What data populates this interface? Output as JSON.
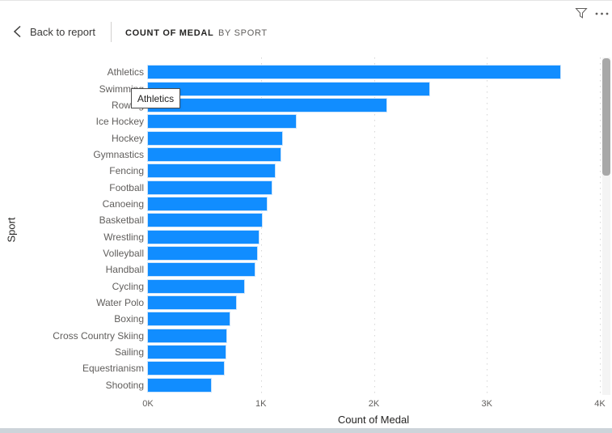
{
  "header": {
    "back_label": "Back to report",
    "tabs": [
      {
        "label": "COUNT OF MEDAL",
        "active": true
      },
      {
        "label": "BY SPORT",
        "active": false
      }
    ]
  },
  "toolbar": {
    "filter_icon": "filter-funnel-icon",
    "more_icon": "ellipsis-icon"
  },
  "tooltip": {
    "text": "Athletics"
  },
  "chart_data": {
    "type": "bar",
    "orientation": "horizontal",
    "title": "Count of Medal by Sport",
    "xlabel": "Count of Medal",
    "ylabel": "Sport",
    "xlim": [
      0,
      4000
    ],
    "grid": true,
    "legend": "none",
    "bar_color": "#118DFF",
    "xticks": [
      {
        "value": 0,
        "label": "0K"
      },
      {
        "value": 1000,
        "label": "1K"
      },
      {
        "value": 2000,
        "label": "2K"
      },
      {
        "value": 3000,
        "label": "3K"
      },
      {
        "value": 4000,
        "label": "4K"
      }
    ],
    "gridlines": [
      1000,
      2000,
      3000,
      4000
    ],
    "categories": [
      "Athletics",
      "Swimming",
      "Rowing",
      "Ice Hockey",
      "Hockey",
      "Gymnastics",
      "Fencing",
      "Football",
      "Canoeing",
      "Basketball",
      "Wrestling",
      "Volleyball",
      "Handball",
      "Cycling",
      "Water Polo",
      "Boxing",
      "Cross Country Skiing",
      "Sailing",
      "Equestrianism",
      "Shooting"
    ],
    "values": [
      3650,
      2490,
      2110,
      1310,
      1185,
      1170,
      1120,
      1095,
      1050,
      1010,
      980,
      965,
      945,
      855,
      780,
      720,
      695,
      690,
      675,
      555
    ]
  },
  "colors": {
    "bar": "#118DFF",
    "axis_text": "#605E5C",
    "title_text": "#252423",
    "bottom_edge": "#CDD4DA"
  }
}
